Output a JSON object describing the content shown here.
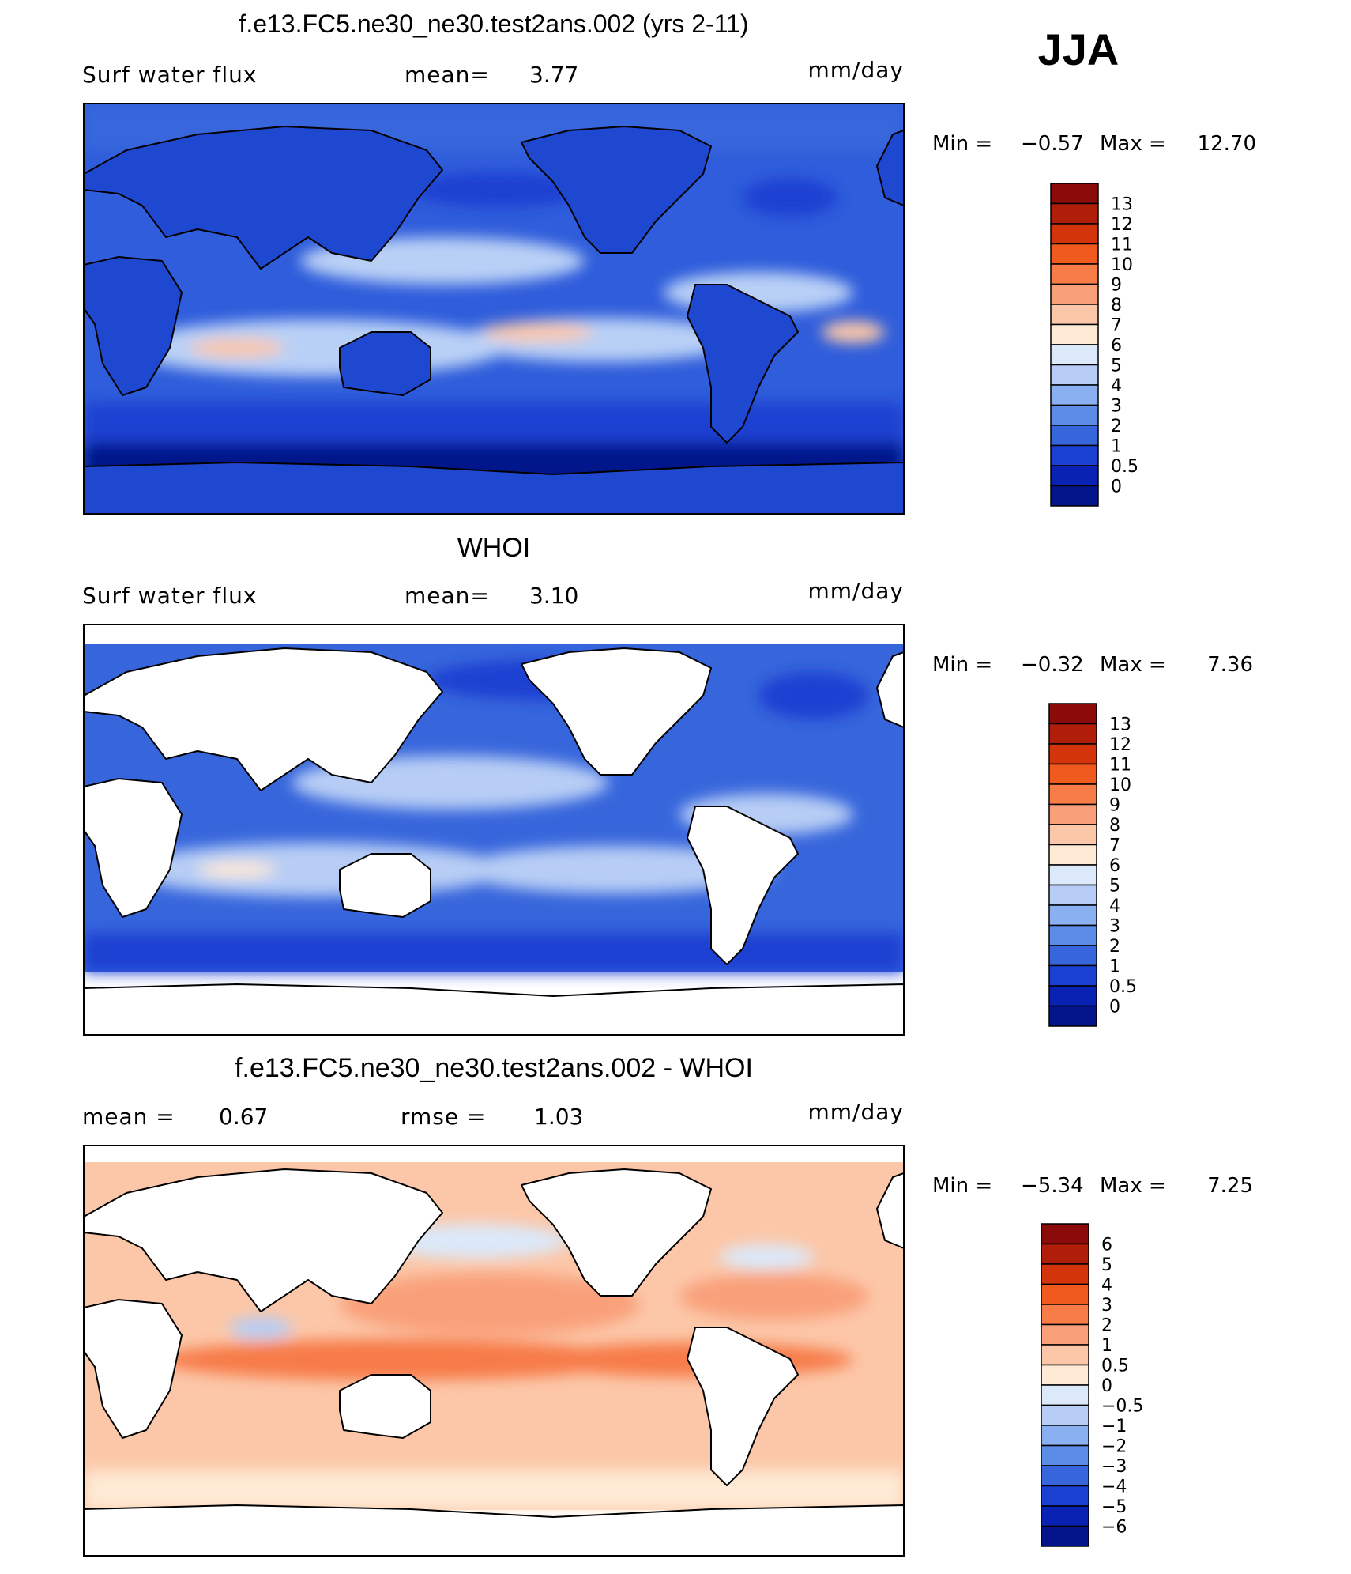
{
  "season": "JJA",
  "panels": [
    {
      "title": "f.e13.FC5.ne30_ne30.test2ans.002 (yrs 2-11)",
      "left_label": "Surf water flux",
      "stat_label": "mean=",
      "stat_value": "3.77",
      "stat2_label": "",
      "stat2_value": "",
      "units": "mm/day",
      "range_text": {
        "min_label": "Min =",
        "min_value": "−0.57",
        "max_label": "Max =",
        "max_value": "12.70"
      },
      "colorbar": {
        "labels": [
          "13",
          "12",
          "11",
          "10",
          "9",
          "8",
          "7",
          "6",
          "5",
          "4",
          "3",
          "2",
          "1",
          "0.5",
          "0"
        ],
        "colors": [
          "#8b0a0a",
          "#b01e0a",
          "#d4340a",
          "#f05a1e",
          "#f77c48",
          "#f9a07a",
          "#fcc7a8",
          "#feead5",
          "#dbe9fa",
          "#b7cdf5",
          "#8bb0f2",
          "#5a8ce8",
          "#3766dc",
          "#1a40d2",
          "#0a22b4",
          "#04148a"
        ]
      },
      "field_colors": {
        "ocean_base": "#2f5ddb",
        "land": "#1f48d0",
        "polar_south": "#04148a",
        "subtropic": "#b9d0f6",
        "warm": "#fcc7a8"
      }
    },
    {
      "title": "WHOI",
      "left_label": "Surf water flux",
      "stat_label": "mean=",
      "stat_value": "3.10",
      "stat2_label": "",
      "stat2_value": "",
      "units": "mm/day",
      "range_text": {
        "min_label": "Min =",
        "min_value": "−0.32",
        "max_label": "Max =",
        "max_value": "7.36"
      },
      "colorbar": {
        "labels": [
          "13",
          "12",
          "11",
          "10",
          "9",
          "8",
          "7",
          "6",
          "5",
          "4",
          "3",
          "2",
          "1",
          "0.5",
          "0"
        ],
        "colors": [
          "#8b0a0a",
          "#b01e0a",
          "#d4340a",
          "#f05a1e",
          "#f77c48",
          "#f9a07a",
          "#fcc7a8",
          "#feead5",
          "#dbe9fa",
          "#b7cdf5",
          "#8bb0f2",
          "#5a8ce8",
          "#3766dc",
          "#1a40d2",
          "#0a22b4",
          "#04148a"
        ]
      },
      "field_colors": {
        "ocean_base": "#3766dc",
        "land": "#ffffff",
        "polar_south": "#1a40d2",
        "subtropic": "#b7cdf5",
        "warm": "#feead5"
      }
    },
    {
      "title": "f.e13.FC5.ne30_ne30.test2ans.002 - WHOI",
      "left_label": "mean =",
      "stat_label": "",
      "stat_value": "0.67",
      "stat2_label": "rmse =",
      "stat2_value": "1.03",
      "units": "mm/day",
      "range_text": {
        "min_label": "Min =",
        "min_value": "−5.34",
        "max_label": "Max =",
        "max_value": "7.25"
      },
      "colorbar": {
        "labels": [
          "6",
          "5",
          "4",
          "3",
          "2",
          "1",
          "0.5",
          "0",
          "−0.5",
          "−1",
          "−2",
          "−3",
          "−4",
          "−5",
          "−6"
        ],
        "colors": [
          "#8b0a0a",
          "#b01e0a",
          "#d4340a",
          "#f05a1e",
          "#f77c48",
          "#f9a07a",
          "#fcc7a8",
          "#feead5",
          "#dbe9fa",
          "#b7cdf5",
          "#8bb0f2",
          "#5a8ce8",
          "#3766dc",
          "#1a40d2",
          "#0a22b4",
          "#04148a"
        ]
      },
      "field_colors": {
        "ocean_base": "#fcc7a8",
        "land": "#ffffff",
        "polar_south": "#feead5",
        "subtropic": "#f9a07a",
        "warm": "#f77c48"
      }
    }
  ],
  "chart_data": [
    {
      "type": "heatmap",
      "title": "f.e13.FC5.ne30_ne30.test2ans.002 (yrs 2-11)",
      "variable": "Surf water flux",
      "units": "mm/day",
      "mean": 3.77,
      "min": -0.57,
      "max": 12.7,
      "contour_levels": [
        0,
        0.5,
        1,
        2,
        3,
        4,
        5,
        6,
        7,
        8,
        9,
        10,
        11,
        12,
        13
      ]
    },
    {
      "type": "heatmap",
      "title": "WHOI",
      "variable": "Surf water flux",
      "units": "mm/day",
      "mean": 3.1,
      "min": -0.32,
      "max": 7.36,
      "contour_levels": [
        0,
        0.5,
        1,
        2,
        3,
        4,
        5,
        6,
        7,
        8,
        9,
        10,
        11,
        12,
        13
      ]
    },
    {
      "type": "heatmap",
      "title": "f.e13.FC5.ne30_ne30.test2ans.002 - WHOI",
      "units": "mm/day",
      "mean": 0.67,
      "rmse": 1.03,
      "min": -5.34,
      "max": 7.25,
      "contour_levels": [
        -6,
        -5,
        -4,
        -3,
        -2,
        -1,
        -0.5,
        0,
        0.5,
        1,
        2,
        3,
        4,
        5,
        6
      ]
    }
  ]
}
